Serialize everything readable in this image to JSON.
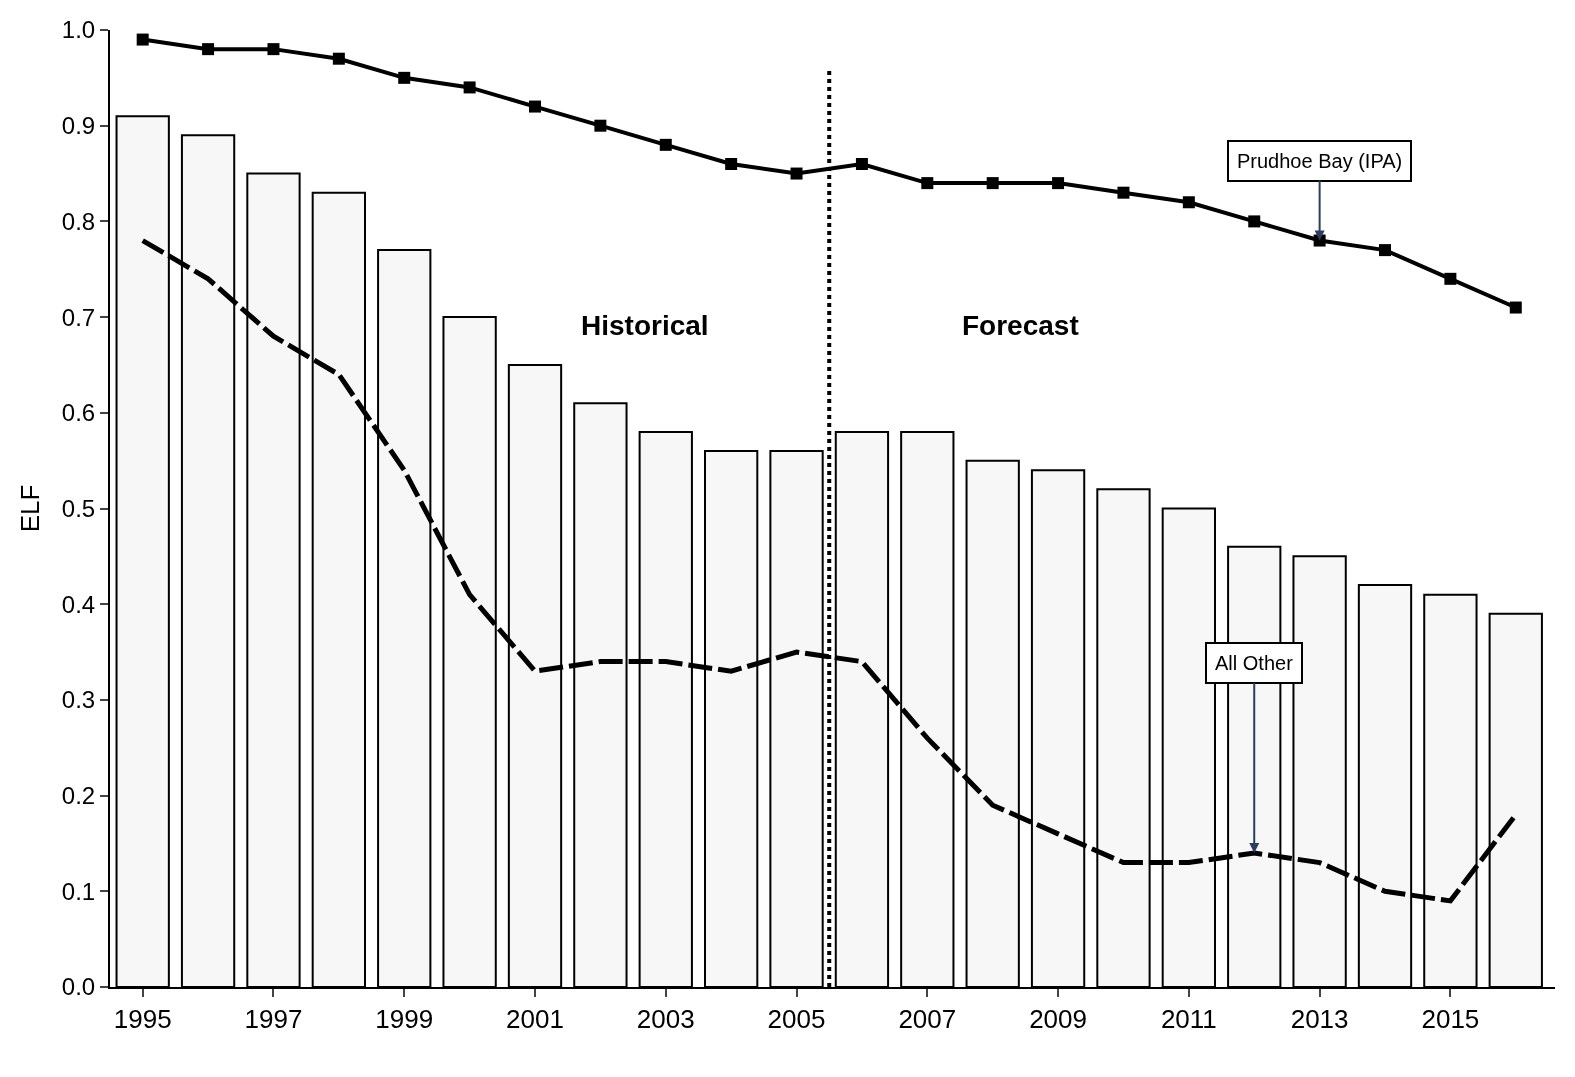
{
  "chart_data": {
    "type": "bar",
    "ylabel": "ELF",
    "x": [
      1995,
      1996,
      1997,
      1998,
      1999,
      2000,
      2001,
      2002,
      2003,
      2004,
      2005,
      2006,
      2007,
      2008,
      2009,
      2010,
      2011,
      2012,
      2013,
      2014,
      2015,
      2016
    ],
    "series": [
      {
        "color": "#f7f7f7",
        "values": [
          0.91,
          0.89,
          0.85,
          0.83,
          0.77,
          0.7,
          0.65,
          0.61,
          0.58,
          0.56,
          0.56,
          0.58,
          0.58,
          0.55,
          0.54,
          0.52,
          0.5,
          0.46,
          0.45,
          0.42,
          0.41,
          0.39
        ]
      },
      {
        "type": "line",
        "color": "#000000",
        "marker": "square",
        "line_style": "solid",
        "values": [
          0.99,
          0.98,
          0.98,
          0.97,
          0.95,
          0.94,
          0.92,
          0.9,
          0.88,
          0.86,
          0.85,
          0.86,
          0.84,
          0.84,
          0.84,
          0.83,
          0.82,
          0.8,
          0.78,
          0.77,
          0.74,
          0.71
        ]
      },
      {
        "type": "line",
        "color": "#000000",
        "marker": "none",
        "line_style": "dashed",
        "values": [
          0.78,
          0.74,
          0.68,
          0.64,
          0.54,
          0.41,
          0.33,
          0.34,
          0.34,
          0.33,
          0.35,
          0.34,
          0.26,
          0.19,
          0.16,
          0.13,
          0.13,
          0.14,
          0.13,
          0.1,
          0.09,
          0.18
        ]
      }
    ],
    "xlim": [
      1994.5,
      2016.6
    ],
    "xticks": [
      1995,
      1997,
      1999,
      2001,
      2003,
      2005,
      2007,
      2009,
      2011,
      2013,
      2015
    ],
    "ylim": [
      0,
      1.0
    ],
    "yticks": [
      {
        "value": 0,
        "label": "0.0"
      },
      0.1,
      0.2,
      0.3,
      0.4,
      0.5,
      0.6,
      0.7,
      0.8,
      0.9,
      {
        "value": 1,
        "label": "1.0"
      }
    ],
    "ref_lines": [
      {
        "axis": "x",
        "value": 2005.5,
        "line_style": "dotted",
        "color": "#000000"
      }
    ],
    "annotations": [
      {
        "text": "Prudhoe Bay (IPA)",
        "x": 2013,
        "y": 0.78
      },
      {
        "text": "All Other",
        "x": 2012,
        "y": 0.14
      },
      "Historical",
      "Forecast"
    ]
  }
}
